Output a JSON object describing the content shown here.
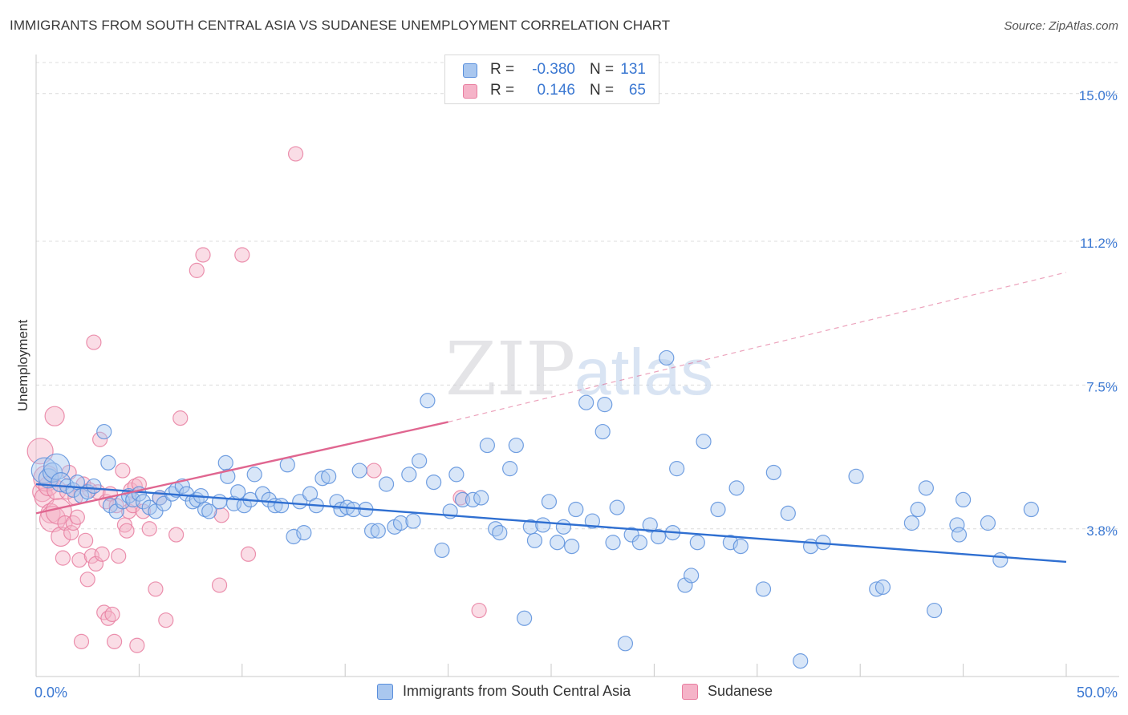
{
  "title": "IMMIGRANTS FROM SOUTH CENTRAL ASIA VS SUDANESE UNEMPLOYMENT CORRELATION CHART",
  "source": "Source: ZipAtlas.com",
  "watermark": {
    "zip": "ZIP",
    "atlas": "atlas"
  },
  "colors": {
    "blue_fill": "#a9c7ef",
    "blue_stroke": "#5a8fdc",
    "blue_line": "#2f6fd1",
    "pink_fill": "#f5b3c8",
    "pink_stroke": "#e87ea0",
    "pink_line": "#e06690",
    "grid": "#dcdcdc",
    "tick_label": "#3b78d2"
  },
  "legend": {
    "r_label": "R =",
    "n_label": "N =",
    "rows": [
      {
        "series": "blue",
        "r": "-0.380",
        "n": "131"
      },
      {
        "series": "pink",
        "r": "0.146",
        "n": "65"
      }
    ]
  },
  "chart_data": {
    "type": "scatter",
    "title": "IMMIGRANTS FROM SOUTH CENTRAL ASIA VS SUDANESE UNEMPLOYMENT CORRELATION CHART",
    "xlabel": "",
    "ylabel": "Unemployment",
    "xlim": [
      0,
      50
    ],
    "ylim": [
      0,
      15.8
    ],
    "x_tick_labels": [
      "0.0%",
      "50.0%"
    ],
    "y_ticks": [
      3.8,
      7.5,
      11.2,
      15.0
    ],
    "y_tick_labels": [
      "3.8%",
      "7.5%",
      "11.2%",
      "15.0%"
    ],
    "x_minor_ticks": [
      0,
      5,
      10,
      15,
      20,
      25,
      30,
      35,
      40,
      45,
      50
    ],
    "grid": true,
    "legend_position": "top-center",
    "series": [
      {
        "name": "Immigrants from South Central Asia",
        "color": "blue",
        "trend": {
          "x": [
            0,
            50
          ],
          "y": [
            4.95,
            2.95
          ],
          "dashed_extension": false
        },
        "points": [
          [
            0.4,
            5.3
          ],
          [
            0.6,
            5.1
          ],
          [
            0.8,
            5.25
          ],
          [
            1.0,
            5.4
          ],
          [
            1.2,
            5.0
          ],
          [
            1.5,
            4.9
          ],
          [
            1.8,
            4.8
          ],
          [
            2.0,
            5.0
          ],
          [
            2.2,
            4.65
          ],
          [
            2.5,
            4.75
          ],
          [
            2.8,
            4.9
          ],
          [
            3.3,
            6.3
          ],
          [
            3.5,
            5.5
          ],
          [
            3.6,
            4.4
          ],
          [
            3.9,
            4.25
          ],
          [
            4.2,
            4.5
          ],
          [
            4.5,
            4.65
          ],
          [
            4.7,
            4.55
          ],
          [
            5.0,
            4.7
          ],
          [
            5.2,
            4.5
          ],
          [
            5.5,
            4.35
          ],
          [
            5.8,
            4.25
          ],
          [
            6.0,
            4.6
          ],
          [
            6.2,
            4.45
          ],
          [
            6.6,
            4.7
          ],
          [
            6.8,
            4.8
          ],
          [
            7.1,
            4.9
          ],
          [
            7.3,
            4.7
          ],
          [
            7.6,
            4.5
          ],
          [
            7.8,
            4.55
          ],
          [
            8.0,
            4.65
          ],
          [
            8.2,
            4.3
          ],
          [
            8.4,
            4.25
          ],
          [
            8.9,
            4.5
          ],
          [
            9.2,
            5.5
          ],
          [
            9.3,
            5.15
          ],
          [
            9.6,
            4.45
          ],
          [
            9.8,
            4.75
          ],
          [
            10.1,
            4.4
          ],
          [
            10.4,
            4.55
          ],
          [
            10.6,
            5.2
          ],
          [
            11.0,
            4.7
          ],
          [
            11.3,
            4.55
          ],
          [
            11.6,
            4.4
          ],
          [
            11.9,
            4.4
          ],
          [
            12.2,
            5.45
          ],
          [
            12.5,
            3.6
          ],
          [
            12.8,
            4.5
          ],
          [
            13.0,
            3.7
          ],
          [
            13.3,
            4.7
          ],
          [
            13.6,
            4.4
          ],
          [
            13.9,
            5.1
          ],
          [
            14.2,
            5.15
          ],
          [
            14.6,
            4.5
          ],
          [
            14.8,
            4.3
          ],
          [
            15.1,
            4.35
          ],
          [
            15.4,
            4.3
          ],
          [
            15.7,
            5.3
          ],
          [
            16.0,
            4.3
          ],
          [
            16.3,
            3.75
          ],
          [
            16.6,
            3.75
          ],
          [
            17.0,
            4.95
          ],
          [
            17.4,
            3.85
          ],
          [
            17.7,
            3.95
          ],
          [
            18.1,
            5.2
          ],
          [
            18.3,
            4.0
          ],
          [
            18.6,
            5.55
          ],
          [
            19.0,
            7.1
          ],
          [
            19.3,
            5.0
          ],
          [
            19.7,
            3.25
          ],
          [
            20.1,
            4.25
          ],
          [
            20.4,
            5.2
          ],
          [
            20.7,
            4.55
          ],
          [
            21.2,
            4.55
          ],
          [
            21.6,
            4.6
          ],
          [
            21.9,
            5.95
          ],
          [
            22.3,
            3.8
          ],
          [
            22.5,
            3.7
          ],
          [
            23.0,
            5.35
          ],
          [
            23.3,
            5.95
          ],
          [
            23.7,
            1.5
          ],
          [
            24.0,
            3.85
          ],
          [
            24.2,
            3.5
          ],
          [
            24.6,
            3.9
          ],
          [
            24.9,
            4.5
          ],
          [
            25.3,
            3.45
          ],
          [
            25.6,
            3.85
          ],
          [
            26.0,
            3.35
          ],
          [
            26.2,
            4.3
          ],
          [
            26.7,
            7.05
          ],
          [
            27.0,
            4.0
          ],
          [
            27.5,
            6.3
          ],
          [
            27.6,
            7.0
          ],
          [
            28.0,
            3.45
          ],
          [
            28.2,
            4.35
          ],
          [
            28.6,
            0.85
          ],
          [
            28.9,
            3.65
          ],
          [
            29.3,
            3.45
          ],
          [
            29.8,
            3.9
          ],
          [
            30.2,
            3.6
          ],
          [
            30.6,
            8.2
          ],
          [
            30.9,
            3.7
          ],
          [
            31.1,
            5.35
          ],
          [
            31.5,
            2.35
          ],
          [
            31.8,
            2.6
          ],
          [
            32.1,
            3.45
          ],
          [
            32.4,
            6.05
          ],
          [
            33.1,
            4.3
          ],
          [
            33.7,
            3.45
          ],
          [
            34.0,
            4.85
          ],
          [
            34.2,
            3.35
          ],
          [
            35.3,
            2.25
          ],
          [
            35.8,
            5.25
          ],
          [
            36.5,
            4.2
          ],
          [
            37.1,
            0.4
          ],
          [
            37.6,
            3.35
          ],
          [
            38.2,
            3.45
          ],
          [
            39.8,
            5.15
          ],
          [
            40.8,
            2.25
          ],
          [
            41.1,
            2.3
          ],
          [
            42.5,
            3.95
          ],
          [
            42.8,
            4.3
          ],
          [
            43.2,
            4.85
          ],
          [
            43.6,
            1.7
          ],
          [
            44.7,
            3.9
          ],
          [
            44.8,
            3.65
          ],
          [
            45.0,
            4.55
          ],
          [
            46.2,
            3.95
          ],
          [
            46.8,
            3.0
          ],
          [
            48.3,
            4.3
          ]
        ]
      },
      {
        "name": "Sudanese",
        "color": "pink",
        "trend": {
          "x": [
            0,
            20
          ],
          "y": [
            4.2,
            6.55
          ],
          "dashed_extension": {
            "x": [
              20,
              50
            ],
            "y": [
              6.55,
              10.4
            ]
          }
        },
        "points": [
          [
            0.2,
            5.8
          ],
          [
            0.3,
            4.75
          ],
          [
            0.4,
            4.6
          ],
          [
            0.5,
            5.1
          ],
          [
            0.6,
            4.9
          ],
          [
            0.7,
            4.2
          ],
          [
            0.8,
            4.05
          ],
          [
            0.9,
            6.7
          ],
          [
            1.0,
            4.8
          ],
          [
            1.1,
            4.25
          ],
          [
            1.2,
            3.6
          ],
          [
            1.3,
            3.05
          ],
          [
            1.4,
            3.95
          ],
          [
            1.5,
            4.75
          ],
          [
            1.6,
            5.25
          ],
          [
            1.7,
            3.7
          ],
          [
            1.8,
            3.95
          ],
          [
            1.9,
            4.6
          ],
          [
            2.0,
            4.1
          ],
          [
            2.1,
            3.0
          ],
          [
            2.2,
            0.9
          ],
          [
            2.3,
            4.95
          ],
          [
            2.4,
            3.5
          ],
          [
            2.5,
            2.5
          ],
          [
            2.6,
            4.8
          ],
          [
            2.7,
            3.1
          ],
          [
            2.8,
            8.6
          ],
          [
            2.9,
            2.9
          ],
          [
            3.0,
            4.75
          ],
          [
            3.1,
            6.1
          ],
          [
            3.2,
            3.15
          ],
          [
            3.3,
            1.65
          ],
          [
            3.4,
            4.5
          ],
          [
            3.5,
            1.5
          ],
          [
            3.6,
            4.7
          ],
          [
            3.7,
            1.6
          ],
          [
            3.8,
            0.9
          ],
          [
            3.9,
            4.4
          ],
          [
            4.0,
            3.1
          ],
          [
            4.2,
            5.3
          ],
          [
            4.3,
            3.9
          ],
          [
            4.4,
            3.75
          ],
          [
            4.5,
            4.25
          ],
          [
            4.6,
            4.8
          ],
          [
            4.7,
            4.4
          ],
          [
            4.8,
            4.9
          ],
          [
            4.9,
            0.8
          ],
          [
            5.0,
            4.95
          ],
          [
            5.2,
            4.25
          ],
          [
            5.5,
            3.8
          ],
          [
            5.8,
            2.25
          ],
          [
            6.0,
            4.6
          ],
          [
            6.3,
            1.45
          ],
          [
            6.8,
            3.65
          ],
          [
            7.0,
            6.65
          ],
          [
            7.8,
            10.45
          ],
          [
            8.1,
            10.85
          ],
          [
            8.9,
            2.35
          ],
          [
            9.0,
            4.15
          ],
          [
            10.0,
            10.85
          ],
          [
            10.3,
            3.15
          ],
          [
            12.6,
            13.45
          ],
          [
            16.4,
            5.3
          ],
          [
            20.6,
            4.6
          ],
          [
            21.5,
            1.7
          ]
        ]
      }
    ]
  },
  "bottom_legend": [
    {
      "series": "blue",
      "label": "Immigrants from South Central Asia"
    },
    {
      "series": "pink",
      "label": "Sudanese"
    }
  ]
}
